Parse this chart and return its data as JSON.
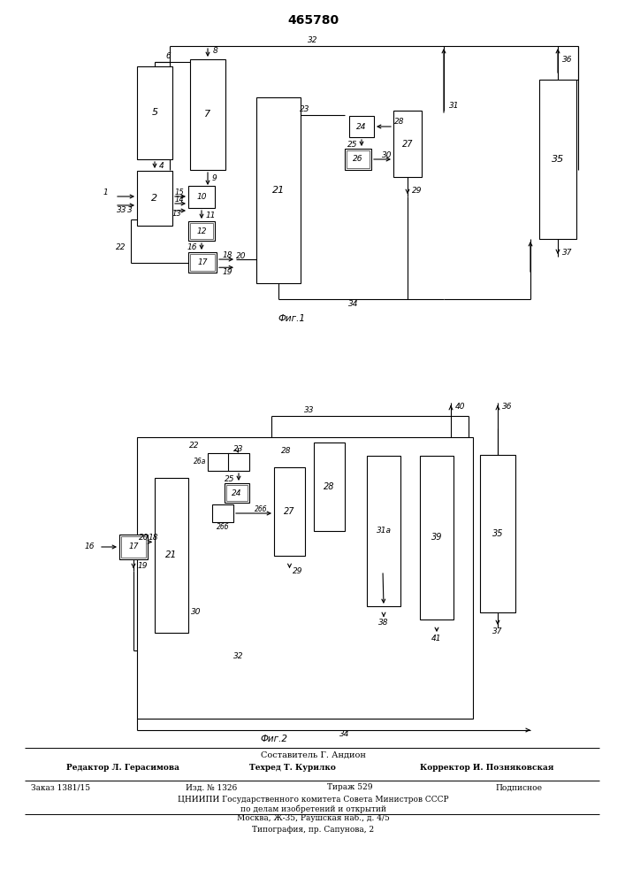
{
  "title": "465780",
  "fig1_label": "Фиг.1",
  "fig2_label": "Фиг.2",
  "footer_line1": "Составитель Г. Андион",
  "footer_line2_left": "Редактор Л. Герасимова",
  "footer_line2_mid": "Техред Т. Курилко",
  "footer_line2_right": "Корректор И. Позняковская",
  "footer_line3_left": "Заказ 1381/15",
  "footer_line3_mid1": "Изд. № 1326",
  "footer_line3_mid2": "Тираж 529",
  "footer_line3_right": "Подписное",
  "footer_line4": "ЦНИИПИ Государственного комитета Совета Министров СССР",
  "footer_line5": "по делам изобретений и открытий",
  "footer_line6": "Москва, Ж-35, Раушская наб., д. 4/5",
  "footer_line7": "Типография, пр. Сапунова, 2",
  "bg_color": "#ffffff",
  "line_color": "#000000"
}
